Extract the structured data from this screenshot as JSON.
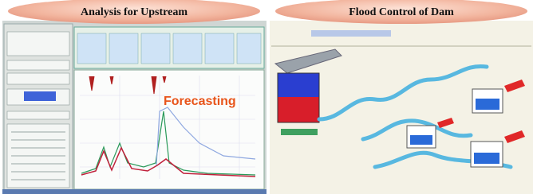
{
  "panels": [
    {
      "title": "Analysis for Upstream",
      "annotation": "Forecasting"
    },
    {
      "title": "Flood Control of Dam"
    }
  ]
}
